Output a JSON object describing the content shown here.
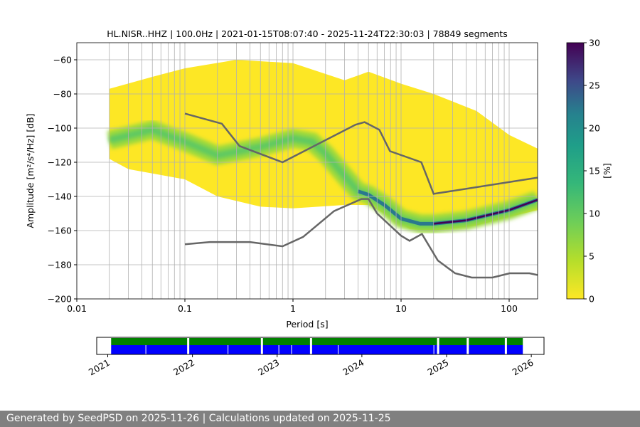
{
  "chart_data": [
    {
      "type": "heatmap",
      "title": "HL.NISR..HHZ | 100.0Hz | 2021-01-15T08:07:40 - 2025-11-24T22:30:03 | 78849 segments",
      "xlabel": "Period [s]",
      "ylabel": "Amplitude [m²/s⁴/Hz] [dB]",
      "xscale": "log",
      "xlim": [
        0.01,
        183
      ],
      "ylim": [
        -200,
        -50
      ],
      "xticks": [
        "0.01",
        "0.1",
        "1",
        "10",
        "100"
      ],
      "yticks": [
        "-60",
        "-80",
        "-100",
        "-120",
        "-140",
        "-160",
        "-180",
        "-200"
      ],
      "grid": true,
      "colorbar": {
        "label": "[%]",
        "ticks": [
          "0",
          "5",
          "10",
          "15",
          "20",
          "25",
          "30"
        ],
        "range": [
          0,
          30
        ],
        "colormap": "viridis_r"
      },
      "envelope_upper": [
        [
          0.02,
          -77
        ],
        [
          0.05,
          -70
        ],
        [
          0.1,
          -65
        ],
        [
          0.3,
          -60
        ],
        [
          1,
          -62
        ],
        [
          3,
          -72
        ],
        [
          5,
          -67
        ],
        [
          10,
          -74
        ],
        [
          20,
          -80
        ],
        [
          50,
          -90
        ],
        [
          100,
          -104
        ],
        [
          183,
          -112
        ]
      ],
      "envelope_lower": [
        [
          0.02,
          -118
        ],
        [
          0.03,
          -124
        ],
        [
          0.1,
          -130
        ],
        [
          0.2,
          -140
        ],
        [
          0.5,
          -146
        ],
        [
          1,
          -147
        ],
        [
          3,
          -145
        ],
        [
          5,
          -145
        ],
        [
          8,
          -152
        ],
        [
          12,
          -159
        ],
        [
          20,
          -160
        ],
        [
          50,
          -157
        ],
        [
          100,
          -152
        ],
        [
          183,
          -148
        ]
      ],
      "mode": [
        [
          0.02,
          -107
        ],
        [
          0.05,
          -101
        ],
        [
          0.1,
          -108
        ],
        [
          0.2,
          -116
        ],
        [
          0.5,
          -111
        ],
        [
          1,
          -106
        ],
        [
          1.5,
          -108
        ],
        [
          2,
          -115
        ],
        [
          3,
          -128
        ],
        [
          4,
          -137
        ],
        [
          5,
          -139
        ],
        [
          7,
          -145
        ],
        [
          10,
          -153
        ],
        [
          15,
          -156
        ],
        [
          20,
          -156
        ],
        [
          40,
          -154
        ],
        [
          100,
          -148
        ],
        [
          183,
          -142
        ]
      ],
      "nhnm": [
        [
          0.1,
          -91.5
        ],
        [
          0.22,
          -97.4
        ],
        [
          0.32,
          -110.5
        ],
        [
          0.8,
          -120
        ],
        [
          3.8,
          -98
        ],
        [
          4.6,
          -96.5
        ],
        [
          6.3,
          -101
        ],
        [
          7.9,
          -113.5
        ],
        [
          15.4,
          -120
        ],
        [
          20,
          -138.5
        ],
        [
          183,
          -129
        ]
      ],
      "nlnm": [
        [
          0.1,
          -168
        ],
        [
          0.17,
          -166.7
        ],
        [
          0.4,
          -166.7
        ],
        [
          0.8,
          -169.2
        ],
        [
          1.24,
          -163.7
        ],
        [
          2.4,
          -148.6
        ],
        [
          4.3,
          -141.5
        ],
        [
          5,
          -141.5
        ],
        [
          6,
          -150
        ],
        [
          10,
          -163
        ],
        [
          12,
          -166
        ],
        [
          15.6,
          -162
        ],
        [
          21.9,
          -177.5
        ],
        [
          31.6,
          -185
        ],
        [
          45,
          -187.5
        ],
        [
          70,
          -187.5
        ],
        [
          101,
          -185
        ],
        [
          154,
          -185
        ],
        [
          183,
          -186
        ]
      ]
    },
    {
      "type": "timeline",
      "xticks": [
        "2021",
        "2022",
        "2023",
        "2024",
        "2025",
        "2026"
      ],
      "range": [
        2020.87,
        2026.15
      ],
      "data_start": 2021.04,
      "data_end": 2025.9,
      "gaps_all": [
        2021.95,
        2022.82,
        2023.4,
        2024.9,
        2025.25,
        2025.7
      ],
      "gaps_blue": [
        2021.45,
        2022.42,
        2023.02,
        2023.17,
        2023.72,
        2024.85
      ],
      "colors": {
        "top": "#008000",
        "bottom": "#0000ff"
      }
    }
  ],
  "footer": "Generated by SeedPSD on 2025-11-26 | Calculations updated on 2025-11-25"
}
